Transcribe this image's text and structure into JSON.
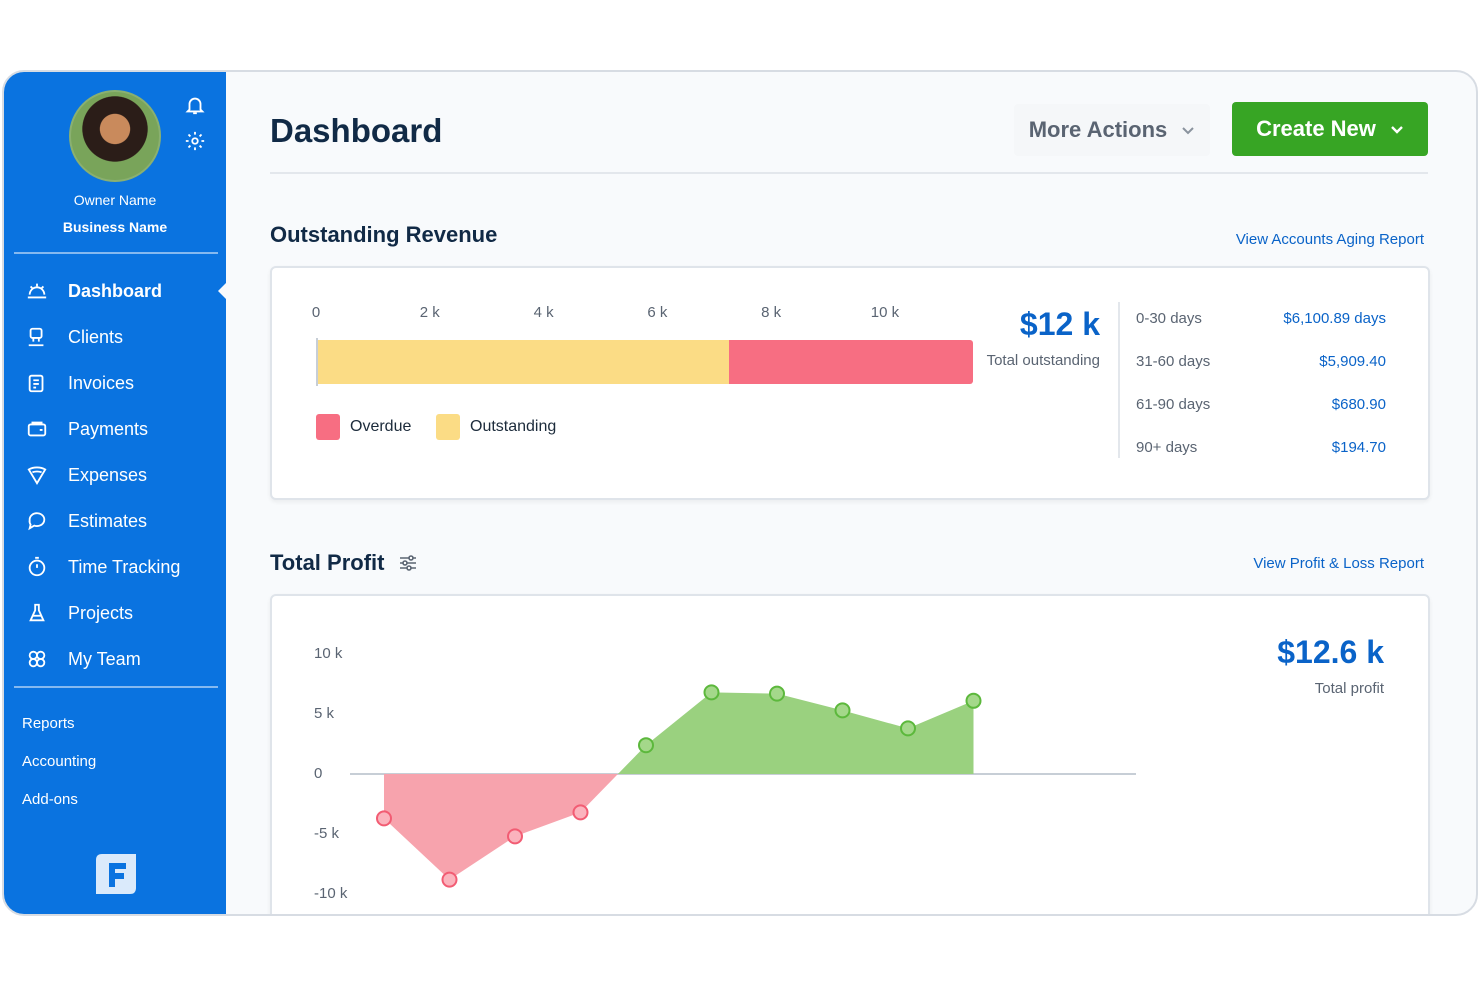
{
  "sidebar": {
    "owner_name": "Owner Name",
    "business_name": "Business Name",
    "items": [
      {
        "label": "Dashboard",
        "icon": "dashboard-icon",
        "active": true
      },
      {
        "label": "Clients",
        "icon": "clients-icon",
        "active": false
      },
      {
        "label": "Invoices",
        "icon": "invoices-icon",
        "active": false
      },
      {
        "label": "Payments",
        "icon": "payments-icon",
        "active": false
      },
      {
        "label": "Expenses",
        "icon": "expenses-icon",
        "active": false
      },
      {
        "label": "Estimates",
        "icon": "estimates-icon",
        "active": false
      },
      {
        "label": "Time Tracking",
        "icon": "stopwatch-icon",
        "active": false
      },
      {
        "label": "Projects",
        "icon": "projects-icon",
        "active": false
      },
      {
        "label": "My Team",
        "icon": "team-icon",
        "active": false
      }
    ],
    "secondary": [
      "Reports",
      "Accounting",
      "Add-ons"
    ]
  },
  "header": {
    "title": "Dashboard",
    "more_actions": "More Actions",
    "create_new": "Create New"
  },
  "outstanding": {
    "title": "Outstanding Revenue",
    "link": "View Accounts Aging Report",
    "total": "$12 k",
    "total_caption": "Total outstanding",
    "legend_overdue": "Overdue",
    "legend_outstanding": "Outstanding",
    "aging": [
      {
        "label": "0-30 days",
        "value": "$6,100.89 days"
      },
      {
        "label": "31-60 days",
        "value": "$5,909.40"
      },
      {
        "label": "61-90 days",
        "value": "$680.90"
      },
      {
        "label": "90+ days",
        "value": "$194.70"
      }
    ]
  },
  "profit": {
    "title": "Total Profit",
    "link": "View Profit & Loss Report",
    "total": "$12.6 k",
    "total_caption": "Total profit"
  },
  "colors": {
    "sidebar": "#0a73e0",
    "accent": "#0a63c8",
    "create_button": "#37a524",
    "overdue": "#f76e82",
    "outstanding": "#fbdc85",
    "profit_positive": "#9ad17f",
    "profit_negative": "#f7a3ad"
  },
  "chart_data": [
    {
      "type": "bar",
      "orientation": "horizontal",
      "stacked": true,
      "x_ticks": [
        "0",
        "2 k",
        "4 k",
        "6 k",
        "8 k",
        "10 k"
      ],
      "xlim": [
        0,
        11600
      ],
      "series": [
        {
          "name": "Outstanding",
          "values": [
            7250
          ],
          "color": "#fbdc85"
        },
        {
          "name": "Overdue",
          "values": [
            4300
          ],
          "color": "#f76e82"
        }
      ],
      "legend": "bottom-left"
    },
    {
      "type": "area",
      "y_ticks": [
        "10 k",
        "5 k",
        "0",
        "-5 k",
        "-10 k"
      ],
      "ylim": [
        -10000,
        10000
      ],
      "x": [
        1,
        2,
        3,
        4,
        5,
        6,
        7,
        8,
        9,
        10
      ],
      "values": [
        -3700,
        -8800,
        -5200,
        -3200,
        2400,
        6800,
        6700,
        5300,
        3800,
        6100
      ],
      "grid": false
    }
  ]
}
